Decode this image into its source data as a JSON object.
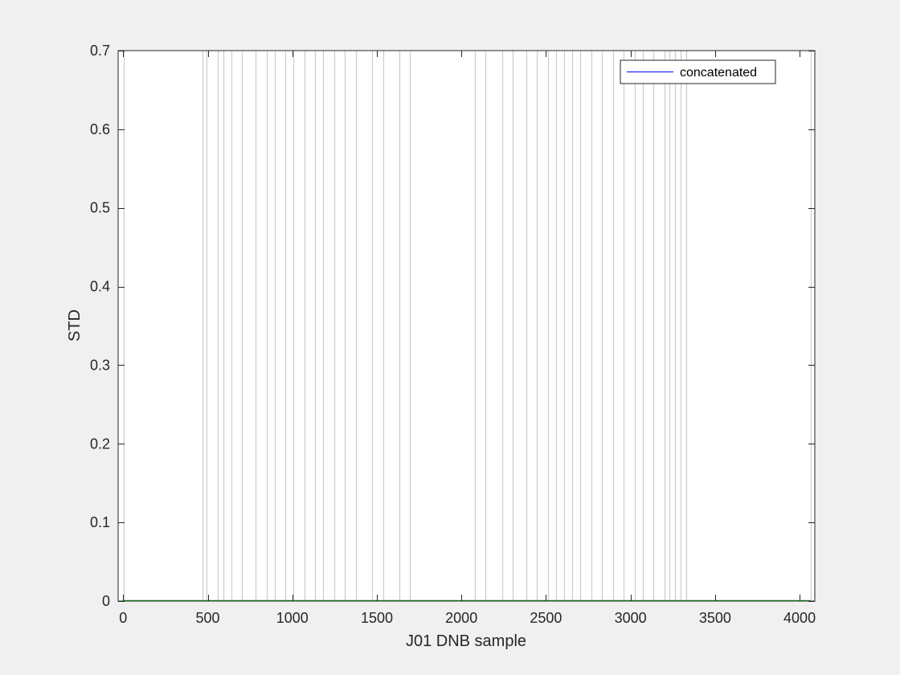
{
  "chart_data": {
    "type": "line",
    "title": "",
    "xlabel": "J01 DNB sample",
    "ylabel": "STD",
    "xlim": [
      -30,
      4090
    ],
    "ylim": [
      0,
      0.7
    ],
    "xticks": [
      0,
      500,
      1000,
      1500,
      2000,
      2500,
      3000,
      3500,
      4000
    ],
    "yticks": [
      0,
      0.1,
      0.2,
      0.3,
      0.4,
      0.5,
      0.6,
      0.7
    ],
    "xtick_labels": [
      "0",
      "500",
      "1000",
      "1500",
      "2000",
      "2500",
      "3000",
      "3500",
      "4000"
    ],
    "ytick_labels": [
      "0",
      "0.1",
      "0.2",
      "0.3",
      "0.4",
      "0.5",
      "0.6",
      "0.7"
    ],
    "grid": false,
    "legend": {
      "location": "top-right",
      "entries": [
        "concatenated"
      ]
    },
    "series": [
      {
        "name": "concatenated",
        "color": "#0000ff",
        "x": [
          0,
          4064
        ],
        "y": [
          0,
          0
        ]
      },
      {
        "color": "#00c000",
        "x": [
          0,
          4064
        ],
        "y": [
          0,
          0
        ]
      }
    ],
    "vertical_lines": {
      "color": "#cccccc",
      "x": [
        5,
        468,
        492,
        560,
        592,
        640,
        704,
        784,
        848,
        896,
        960,
        1008,
        1072,
        1136,
        1184,
        1248,
        1312,
        1376,
        1472,
        1536,
        1632,
        1696,
        2080,
        2144,
        2240,
        2304,
        2384,
        2448,
        2512,
        2560,
        2608,
        2656,
        2704,
        2768,
        2832,
        2896,
        2960,
        3024,
        3072,
        3136,
        3200,
        3232,
        3264,
        3296,
        3328,
        4064
      ]
    }
  }
}
